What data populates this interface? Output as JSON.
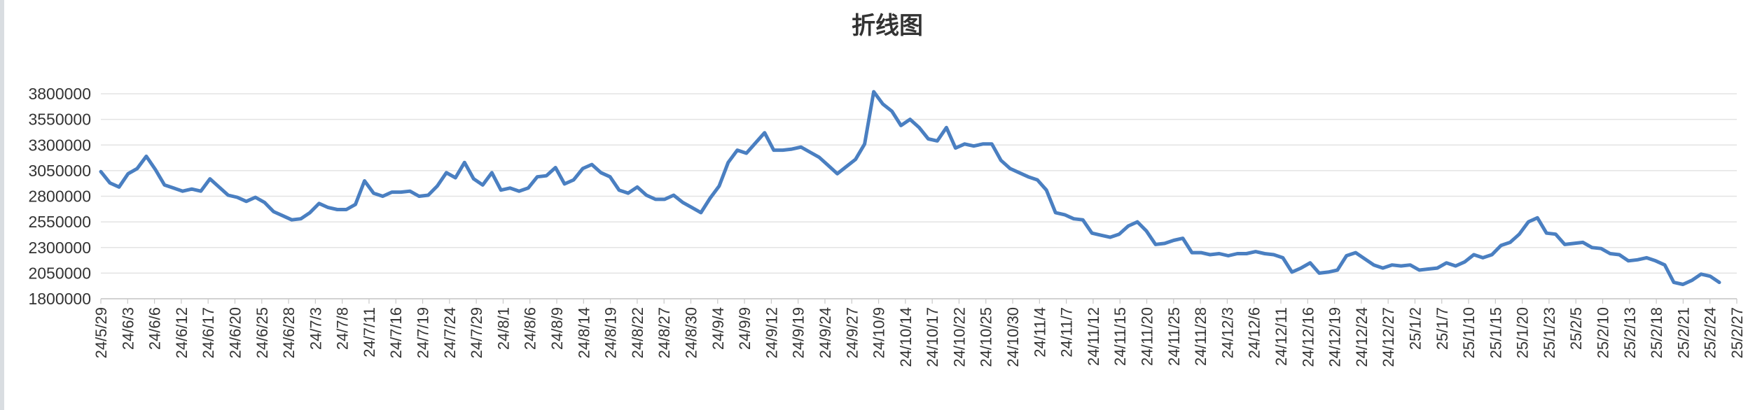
{
  "chart_data": {
    "type": "line",
    "title": "折线图",
    "xlabel": "",
    "ylabel": "",
    "ylim": [
      1800000,
      3800000
    ],
    "yticks": [
      1800000,
      2050000,
      2300000,
      2550000,
      2800000,
      3050000,
      3300000,
      3550000,
      3800000
    ],
    "grid": true,
    "legend": "none",
    "x_tick_labels": [
      "24/5/29",
      "24/6/3",
      "24/6/6",
      "24/6/12",
      "24/6/17",
      "24/6/20",
      "24/6/25",
      "24/6/28",
      "24/7/3",
      "24/7/8",
      "24/7/11",
      "24/7/16",
      "24/7/19",
      "24/7/24",
      "24/7/29",
      "24/8/1",
      "24/8/6",
      "24/8/9",
      "24/8/14",
      "24/8/19",
      "24/8/22",
      "24/8/27",
      "24/8/30",
      "24/9/4",
      "24/9/9",
      "24/9/12",
      "24/9/19",
      "24/9/24",
      "24/9/27",
      "24/10/9",
      "24/10/14",
      "24/10/17",
      "24/10/22",
      "24/10/25",
      "24/10/30",
      "24/11/4",
      "24/11/7",
      "24/11/12",
      "24/11/15",
      "24/11/20",
      "24/11/25",
      "24/11/28",
      "24/12/3",
      "24/12/6",
      "24/12/11",
      "24/12/16",
      "24/12/19",
      "24/12/24",
      "24/12/27",
      "25/1/2",
      "25/1/7",
      "25/1/10",
      "25/1/15",
      "25/1/20",
      "25/1/23",
      "25/2/5",
      "25/2/10",
      "25/2/13",
      "25/2/18",
      "25/2/21",
      "25/2/24",
      "25/2/27"
    ],
    "series": [
      {
        "color": "#4a7fc1",
        "values": [
          3040000,
          2930000,
          2890000,
          3020000,
          3070000,
          3190000,
          3060000,
          2910000,
          2880000,
          2850000,
          2870000,
          2850000,
          2970000,
          2890000,
          2810000,
          2790000,
          2750000,
          2790000,
          2740000,
          2650000,
          2610000,
          2570000,
          2580000,
          2640000,
          2730000,
          2690000,
          2670000,
          2670000,
          2720000,
          2950000,
          2830000,
          2800000,
          2840000,
          2840000,
          2850000,
          2800000,
          2810000,
          2900000,
          3030000,
          2980000,
          3130000,
          2970000,
          2910000,
          3030000,
          2860000,
          2880000,
          2850000,
          2880000,
          2990000,
          3000000,
          3080000,
          2920000,
          2960000,
          3070000,
          3110000,
          3030000,
          2990000,
          2860000,
          2830000,
          2890000,
          2810000,
          2770000,
          2770000,
          2810000,
          2740000,
          2690000,
          2640000,
          2780000,
          2900000,
          3130000,
          3250000,
          3220000,
          3320000,
          3420000,
          3250000,
          3250000,
          3260000,
          3280000,
          3230000,
          3180000,
          3100000,
          3020000,
          3090000,
          3160000,
          3310000,
          3820000,
          3700000,
          3630000,
          3490000,
          3550000,
          3470000,
          3360000,
          3340000,
          3470000,
          3270000,
          3310000,
          3290000,
          3310000,
          3310000,
          3150000,
          3070000,
          3030000,
          2990000,
          2960000,
          2860000,
          2640000,
          2620000,
          2580000,
          2570000,
          2440000,
          2420000,
          2400000,
          2430000,
          2510000,
          2550000,
          2460000,
          2330000,
          2340000,
          2370000,
          2390000,
          2250000,
          2250000,
          2230000,
          2240000,
          2220000,
          2240000,
          2240000,
          2260000,
          2240000,
          2230000,
          2200000,
          2060000,
          2100000,
          2150000,
          2050000,
          2060000,
          2080000,
          2220000,
          2250000,
          2190000,
          2130000,
          2100000,
          2130000,
          2120000,
          2130000,
          2080000,
          2090000,
          2100000,
          2150000,
          2120000,
          2160000,
          2230000,
          2200000,
          2230000,
          2320000,
          2350000,
          2430000,
          2550000,
          2590000,
          2440000,
          2430000,
          2330000,
          2340000,
          2350000,
          2300000,
          2290000,
          2240000,
          2230000,
          2170000,
          2180000,
          2200000,
          2170000,
          2130000,
          1960000,
          1940000,
          1980000,
          2040000,
          2020000,
          1960000
        ]
      }
    ]
  }
}
